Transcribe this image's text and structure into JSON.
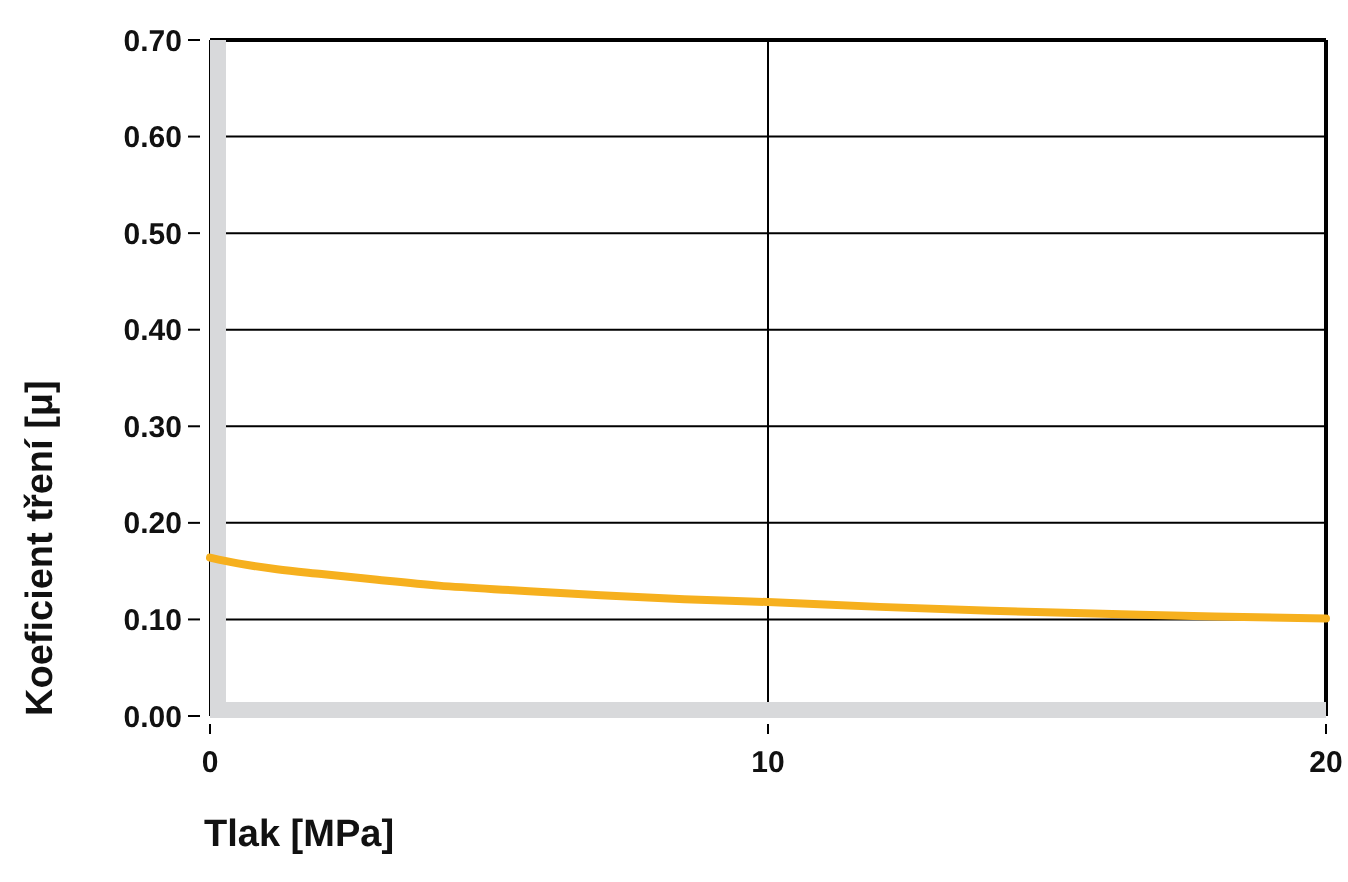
{
  "chart_data": {
    "type": "line",
    "xlabel": "Tlak [MPa]",
    "ylabel": "Koeficient tření [μ]",
    "x": [
      0,
      0.5,
      1.2,
      2,
      3,
      4.1,
      5.5,
      7,
      8.5,
      10,
      12,
      14,
      16,
      18,
      20
    ],
    "series": [
      {
        "color": "#f6b01e",
        "values": [
          0.164,
          0.158,
          0.152,
          0.147,
          0.141,
          0.135,
          0.13,
          0.125,
          0.121,
          0.118,
          0.113,
          0.109,
          0.106,
          0.103,
          0.101
        ]
      }
    ],
    "xlim": [
      0,
      20
    ],
    "ylim": [
      0,
      0.7
    ],
    "xticks": [
      0,
      10,
      20
    ],
    "yticks": [
      {
        "value": 0,
        "label": "0.00"
      },
      {
        "value": 0.1,
        "label": "0.10"
      },
      {
        "value": 0.2,
        "label": "0.20"
      },
      {
        "value": 0.3,
        "label": "0.30"
      },
      {
        "value": 0.4,
        "label": "0.40"
      },
      {
        "value": 0.5,
        "label": "0.50"
      },
      {
        "value": 0.6,
        "label": "0.60"
      },
      {
        "value": 0.7,
        "label": "0.70"
      }
    ],
    "grid": true,
    "marker": "none",
    "line_style": "solid"
  }
}
